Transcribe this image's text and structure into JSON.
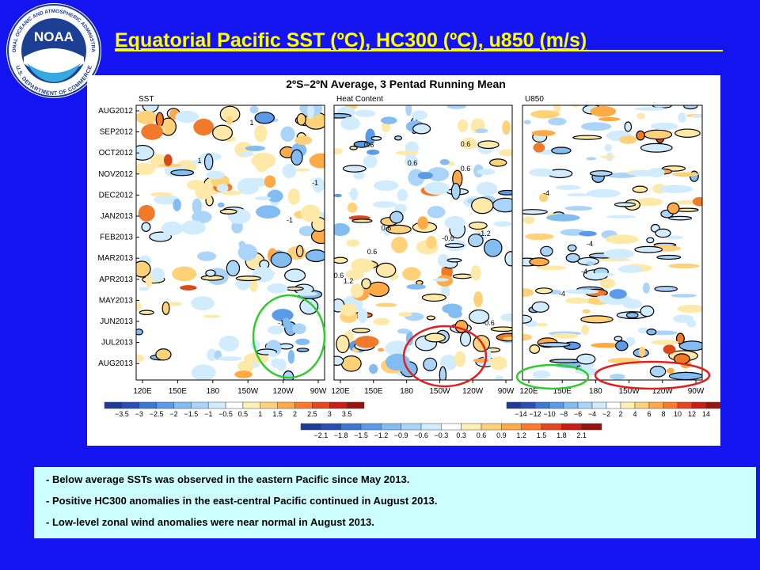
{
  "title": "Equatorial Pacific SST (ºC), HC300 (ºC), u850  (m/s)",
  "logo": {
    "name": "NOAA",
    "ring_top": "NATIONAL OCEANIC AND ATMOSPHERIC ADMINISTRATION",
    "ring_bottom": "U.S. DEPARTMENT OF COMMERCE"
  },
  "figure": {
    "title": "2ºS–2ºN Average, 3 Pentad Running Mean",
    "panels": [
      {
        "label": "SST"
      },
      {
        "label": "Heat Content"
      },
      {
        "label": "U850"
      }
    ],
    "time_labels": [
      "AUG2012",
      "SEP2012",
      "OCT2012",
      "NOV2012",
      "DEC2012",
      "JAN2013",
      "FEB2013",
      "MAR2013",
      "APR2013",
      "MAY2013",
      "JUN2013",
      "JUL2013",
      "AUG2013"
    ],
    "lon_labels": [
      "120E",
      "150E",
      "180",
      "150W",
      "120W",
      "90W"
    ],
    "contour_labels": [
      "1",
      "1",
      "-1",
      "-1",
      "-1",
      "0.6",
      "0.6",
      "0.6",
      "0.6",
      "0.6",
      "0.6",
      "-0.6",
      "-1.2",
      "-0.6",
      "1.2",
      "0.6",
      "-4",
      "-4",
      "-4",
      "-4"
    ],
    "colorbars": {
      "sst": [
        "−3.5",
        "−3",
        "−2.5",
        "−2",
        "−1.5",
        "−1",
        "−0.5",
        "0.5",
        "1",
        "1.5",
        "2",
        "2.5",
        "3",
        "3.5"
      ],
      "hc": [
        "−2.1",
        "−1.8",
        "−1.5",
        "−1.2",
        "−0.9",
        "−0.6",
        "−0.3",
        "0.3",
        "0.6",
        "0.9",
        "1.2",
        "1.5",
        "1.8",
        "2.1"
      ],
      "u850": [
        "−14",
        "−12",
        "−10",
        "−8",
        "−6",
        "−4",
        "−2",
        "2",
        "4",
        "6",
        "8",
        "10",
        "12",
        "14"
      ]
    }
  },
  "notes": [
    "- Below average SSTs was observed in the eastern Pacific since May 2013.",
    "- Positive HC300 anomalies in the east-central Pacific continued in August 2013.",
    "- Low-level zonal wind anomalies were near normal in August 2013."
  ]
}
